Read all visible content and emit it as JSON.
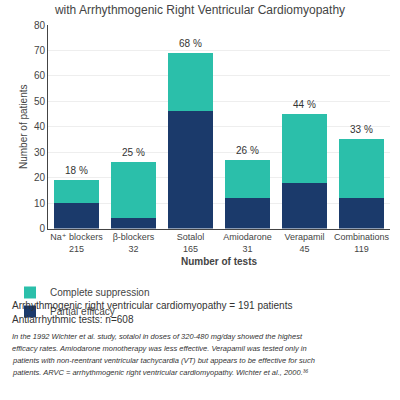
{
  "chart_data": {
    "type": "bar",
    "stacked": true,
    "title": "with Arrhythmogenic Right Ventricular Cardiomyopathy",
    "categories": [
      "Na⁺ blockers\n215",
      "β-blockers\n32",
      "Sotalol\n165",
      "Amiodarone\n31",
      "Verapamil\n45",
      "Combinations\n119"
    ],
    "series": [
      {
        "name": "Partial efficacy",
        "color": "#1b3a6b",
        "values": [
          10,
          4,
          46,
          12,
          18,
          12
        ]
      },
      {
        "name": "Complete suppression",
        "color": "#2bbfaa",
        "values": [
          9,
          22,
          23,
          15,
          27,
          23
        ]
      }
    ],
    "annotations": [
      "18 %",
      "25 %",
      "68 %",
      "26 %",
      "44 %",
      "33 %"
    ],
    "xlabel": "Number of tests",
    "ylabel": "Number of patients",
    "ylim": [
      0,
      80
    ],
    "yticks": [
      0,
      10,
      20,
      30,
      40,
      50,
      60,
      70,
      80
    ],
    "grid": true,
    "legend": "bottom",
    "notes": [
      "Arrhythmogenic right ventricular cardiomyopathy = 191 patients",
      "Antiarrhythmic tests: n=608"
    ],
    "caption": [
      "In the 1992 Wichter et al. study, sotalol in doses of 320-480 mg/day showed the highest",
      "efficacy rates. Amiodarone monotherapy was less effective. Verapamil was tested only in",
      "patients with non-reentrant ventricular tachycardia (VT) but appears to be effective for such",
      "patients. ARVC = arrhythmogenic right ventricular cardiomyopathy. Wichter et al., 2000.³⁶"
    ]
  }
}
